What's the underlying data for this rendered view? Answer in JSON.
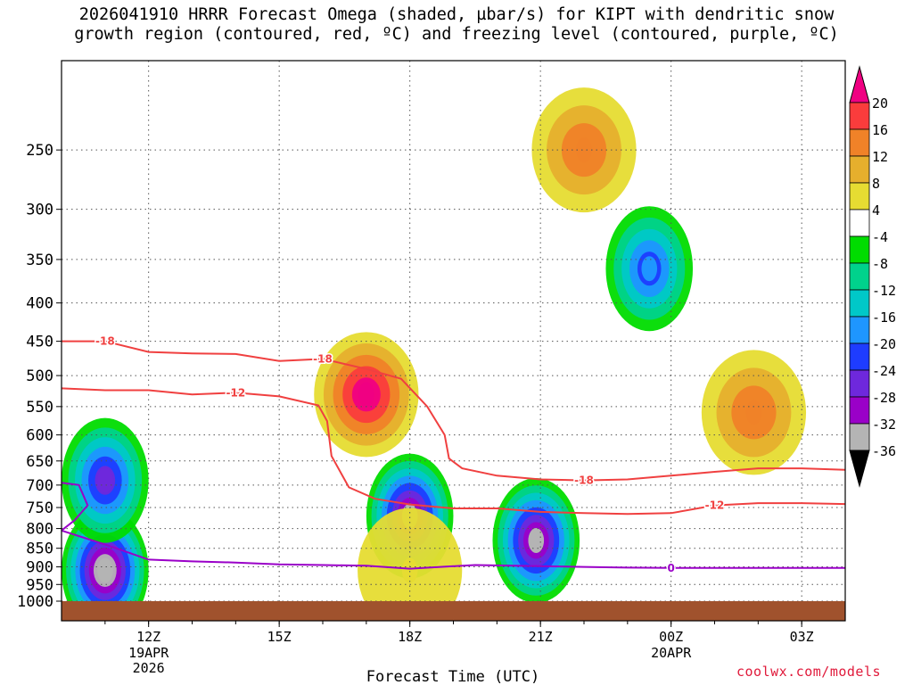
{
  "title": {
    "line1": "2026041910 HRRR Forecast Omega (shaded, µbar/s) for KIPT with dendritic snow",
    "line2": "growth region (contoured, red, ºC) and freezing level (contoured, purple, ºC)"
  },
  "credit": "coolwx.com/models",
  "chart_data": {
    "type": "heatmap",
    "title": "2026041910 HRRR Forecast Omega (shaded, µbar/s) for KIPT with dendritic snow growth region (contoured, red, ºC) and freezing level (contoured, purple, ºC)",
    "xlabel": "Forecast Time (UTC)",
    "ylabel": "",
    "y_axis": {
      "scale": "pressure (hPa), inverted",
      "ticks": [
        250,
        300,
        350,
        400,
        450,
        500,
        550,
        600,
        650,
        700,
        750,
        800,
        850,
        900,
        950,
        1000
      ],
      "range": [
        1000,
        190
      ]
    },
    "x_axis": {
      "ticks": [
        {
          "hour": 12,
          "label": "12Z",
          "sub": [
            "19APR",
            "2026"
          ]
        },
        {
          "hour": 15,
          "label": "15Z",
          "sub": []
        },
        {
          "hour": 18,
          "label": "18Z",
          "sub": []
        },
        {
          "hour": 21,
          "label": "21Z",
          "sub": []
        },
        {
          "hour": 24,
          "label": "00Z",
          "sub": [
            "20APR"
          ]
        },
        {
          "hour": 27,
          "label": "03Z",
          "sub": []
        }
      ],
      "range_hours": [
        10,
        28
      ]
    },
    "grid": true,
    "colorbar": {
      "placement": "right",
      "labels": [
        "20",
        "16",
        "12",
        "8",
        "4",
        "-4",
        "-8",
        "-12",
        "-16",
        "-20",
        "-24",
        "-28",
        "-32",
        "-36"
      ],
      "levels": [
        {
          "max": -36,
          "color": "#000000"
        },
        {
          "min": -36,
          "max": -32,
          "color": "#b4b4b4"
        },
        {
          "min": -32,
          "max": -28,
          "color": "#9a00c8"
        },
        {
          "min": -28,
          "max": -24,
          "color": "#6e28dc"
        },
        {
          "min": -24,
          "max": -20,
          "color": "#1e3cff"
        },
        {
          "min": -20,
          "max": -16,
          "color": "#1e96ff"
        },
        {
          "min": -16,
          "max": -12,
          "color": "#00c8c8"
        },
        {
          "min": -12,
          "max": -8,
          "color": "#00d28c"
        },
        {
          "min": -8,
          "max": -4,
          "color": "#00dc00"
        },
        {
          "min": -4,
          "max": 4,
          "color": "#ffffff"
        },
        {
          "min": 4,
          "max": 8,
          "color": "#e6dc32"
        },
        {
          "min": 8,
          "max": 12,
          "color": "#e6af2d"
        },
        {
          "min": 12,
          "max": 16,
          "color": "#f08228"
        },
        {
          "min": 16,
          "max": 20,
          "color": "#fa3c3c"
        },
        {
          "min": 20,
          "color": "#f00082"
        }
      ]
    },
    "omega_features": [
      {
        "hour": 11.0,
        "p": 910,
        "value": -36
      },
      {
        "hour": 11.0,
        "p": 690,
        "value": -26
      },
      {
        "hour": 17.0,
        "p": 530,
        "value": 22
      },
      {
        "hour": 18.0,
        "p": 770,
        "value": -33
      },
      {
        "hour": 20.9,
        "p": 830,
        "value": -33
      },
      {
        "hour": 22.0,
        "p": 250,
        "value": 14
      },
      {
        "hour": 23.5,
        "p": 360,
        "value": -20
      },
      {
        "hour": 25.9,
        "p": 560,
        "value": 14
      },
      {
        "hour": 18.0,
        "p": 910,
        "value": 5
      }
    ],
    "contours": [
      {
        "name": "-18",
        "color": "#f04040",
        "label": "-18",
        "kind": "dendritic",
        "points": [
          [
            10.0,
            450
          ],
          [
            10.5,
            450
          ],
          [
            11.0,
            450
          ],
          [
            12.0,
            465
          ],
          [
            13.0,
            467
          ],
          [
            14.0,
            468
          ],
          [
            15.0,
            478
          ],
          [
            16.0,
            475
          ],
          [
            17.0,
            490
          ],
          [
            17.8,
            505
          ],
          [
            18.4,
            550
          ],
          [
            18.8,
            600
          ],
          [
            18.9,
            645
          ],
          [
            19.2,
            665
          ],
          [
            20.0,
            680
          ],
          [
            21.0,
            688
          ],
          [
            22.0,
            690
          ],
          [
            23.0,
            688
          ],
          [
            24.0,
            680
          ],
          [
            25.0,
            672
          ],
          [
            26.0,
            665
          ],
          [
            27.0,
            665
          ],
          [
            28.0,
            668
          ]
        ]
      },
      {
        "name": "-12",
        "color": "#f04040",
        "label": "-12",
        "kind": "dendritic",
        "points": [
          [
            10.0,
            520
          ],
          [
            11.0,
            523
          ],
          [
            12.0,
            523
          ],
          [
            13.0,
            530
          ],
          [
            14.0,
            527
          ],
          [
            15.0,
            533
          ],
          [
            15.9,
            548
          ],
          [
            16.1,
            575
          ],
          [
            16.2,
            640
          ],
          [
            16.6,
            705
          ],
          [
            17.2,
            730
          ],
          [
            18.0,
            743
          ],
          [
            19.0,
            752
          ],
          [
            20.0,
            752
          ],
          [
            21.0,
            760
          ],
          [
            22.0,
            763
          ],
          [
            23.0,
            765
          ],
          [
            24.0,
            763
          ],
          [
            25.0,
            745
          ],
          [
            26.0,
            740
          ],
          [
            27.0,
            740
          ],
          [
            28.0,
            742
          ]
        ]
      },
      {
        "name": "0",
        "color": "#9a00c8",
        "label": "0",
        "kind": "freezing",
        "points": [
          [
            10.0,
            695
          ],
          [
            10.4,
            700
          ],
          [
            10.6,
            745
          ],
          [
            10.3,
            780
          ],
          [
            10.0,
            805
          ],
          [
            11.0,
            840
          ],
          [
            12.0,
            880
          ],
          [
            13.0,
            885
          ],
          [
            14.0,
            888
          ],
          [
            15.0,
            893
          ],
          [
            16.0,
            895
          ],
          [
            17.0,
            897
          ],
          [
            18.0,
            905
          ],
          [
            18.7,
            900
          ],
          [
            19.5,
            895
          ],
          [
            21.0,
            898
          ],
          [
            22.0,
            900
          ],
          [
            23.0,
            902
          ],
          [
            24.0,
            903
          ],
          [
            25.0,
            903
          ],
          [
            26.0,
            903
          ],
          [
            27.0,
            903
          ],
          [
            28.0,
            903
          ]
        ]
      }
    ]
  }
}
